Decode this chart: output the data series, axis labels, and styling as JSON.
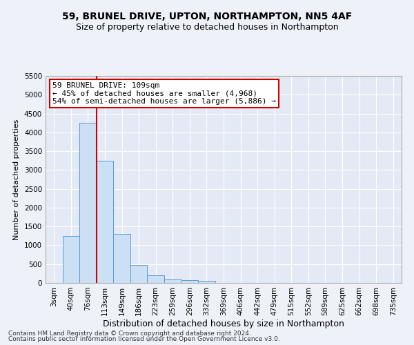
{
  "title": "59, BRUNEL DRIVE, UPTON, NORTHAMPTON, NN5 4AF",
  "subtitle": "Size of property relative to detached houses in Northampton",
  "xlabel": "Distribution of detached houses by size in Northampton",
  "ylabel": "Number of detached properties",
  "footer_line1": "Contains HM Land Registry data © Crown copyright and database right 2024.",
  "footer_line2": "Contains public sector information licensed under the Open Government Licence v3.0.",
  "bar_labels": [
    "3sqm",
    "40sqm",
    "76sqm",
    "113sqm",
    "149sqm",
    "186sqm",
    "223sqm",
    "259sqm",
    "296sqm",
    "332sqm",
    "369sqm",
    "406sqm",
    "442sqm",
    "479sqm",
    "515sqm",
    "552sqm",
    "589sqm",
    "625sqm",
    "662sqm",
    "698sqm",
    "735sqm"
  ],
  "bar_values": [
    0,
    1250,
    4260,
    3250,
    1310,
    480,
    210,
    100,
    70,
    50,
    0,
    0,
    0,
    0,
    0,
    0,
    0,
    0,
    0,
    0,
    0
  ],
  "bar_color": "#cce0f5",
  "bar_edge_color": "#5b9bd5",
  "property_line_x": 2.5,
  "property_line_color": "#cc0000",
  "annotation_line1": "59 BRUNEL DRIVE: 109sqm",
  "annotation_line2": "← 45% of detached houses are smaller (4,968)",
  "annotation_line3": "54% of semi-detached houses are larger (5,886) →",
  "annotation_box_color": "#ffffff",
  "annotation_box_edge_color": "#cc0000",
  "ylim": [
    0,
    5500
  ],
  "yticks": [
    0,
    500,
    1000,
    1500,
    2000,
    2500,
    3000,
    3500,
    4000,
    4500,
    5000,
    5500
  ],
  "background_color": "#eef2f8",
  "plot_bg_color": "#e4eaf5",
  "grid_color": "#ffffff",
  "title_fontsize": 10,
  "subtitle_fontsize": 9,
  "xlabel_fontsize": 9,
  "ylabel_fontsize": 8,
  "tick_fontsize": 7.5,
  "annotation_fontsize": 8,
  "footer_fontsize": 6.5
}
